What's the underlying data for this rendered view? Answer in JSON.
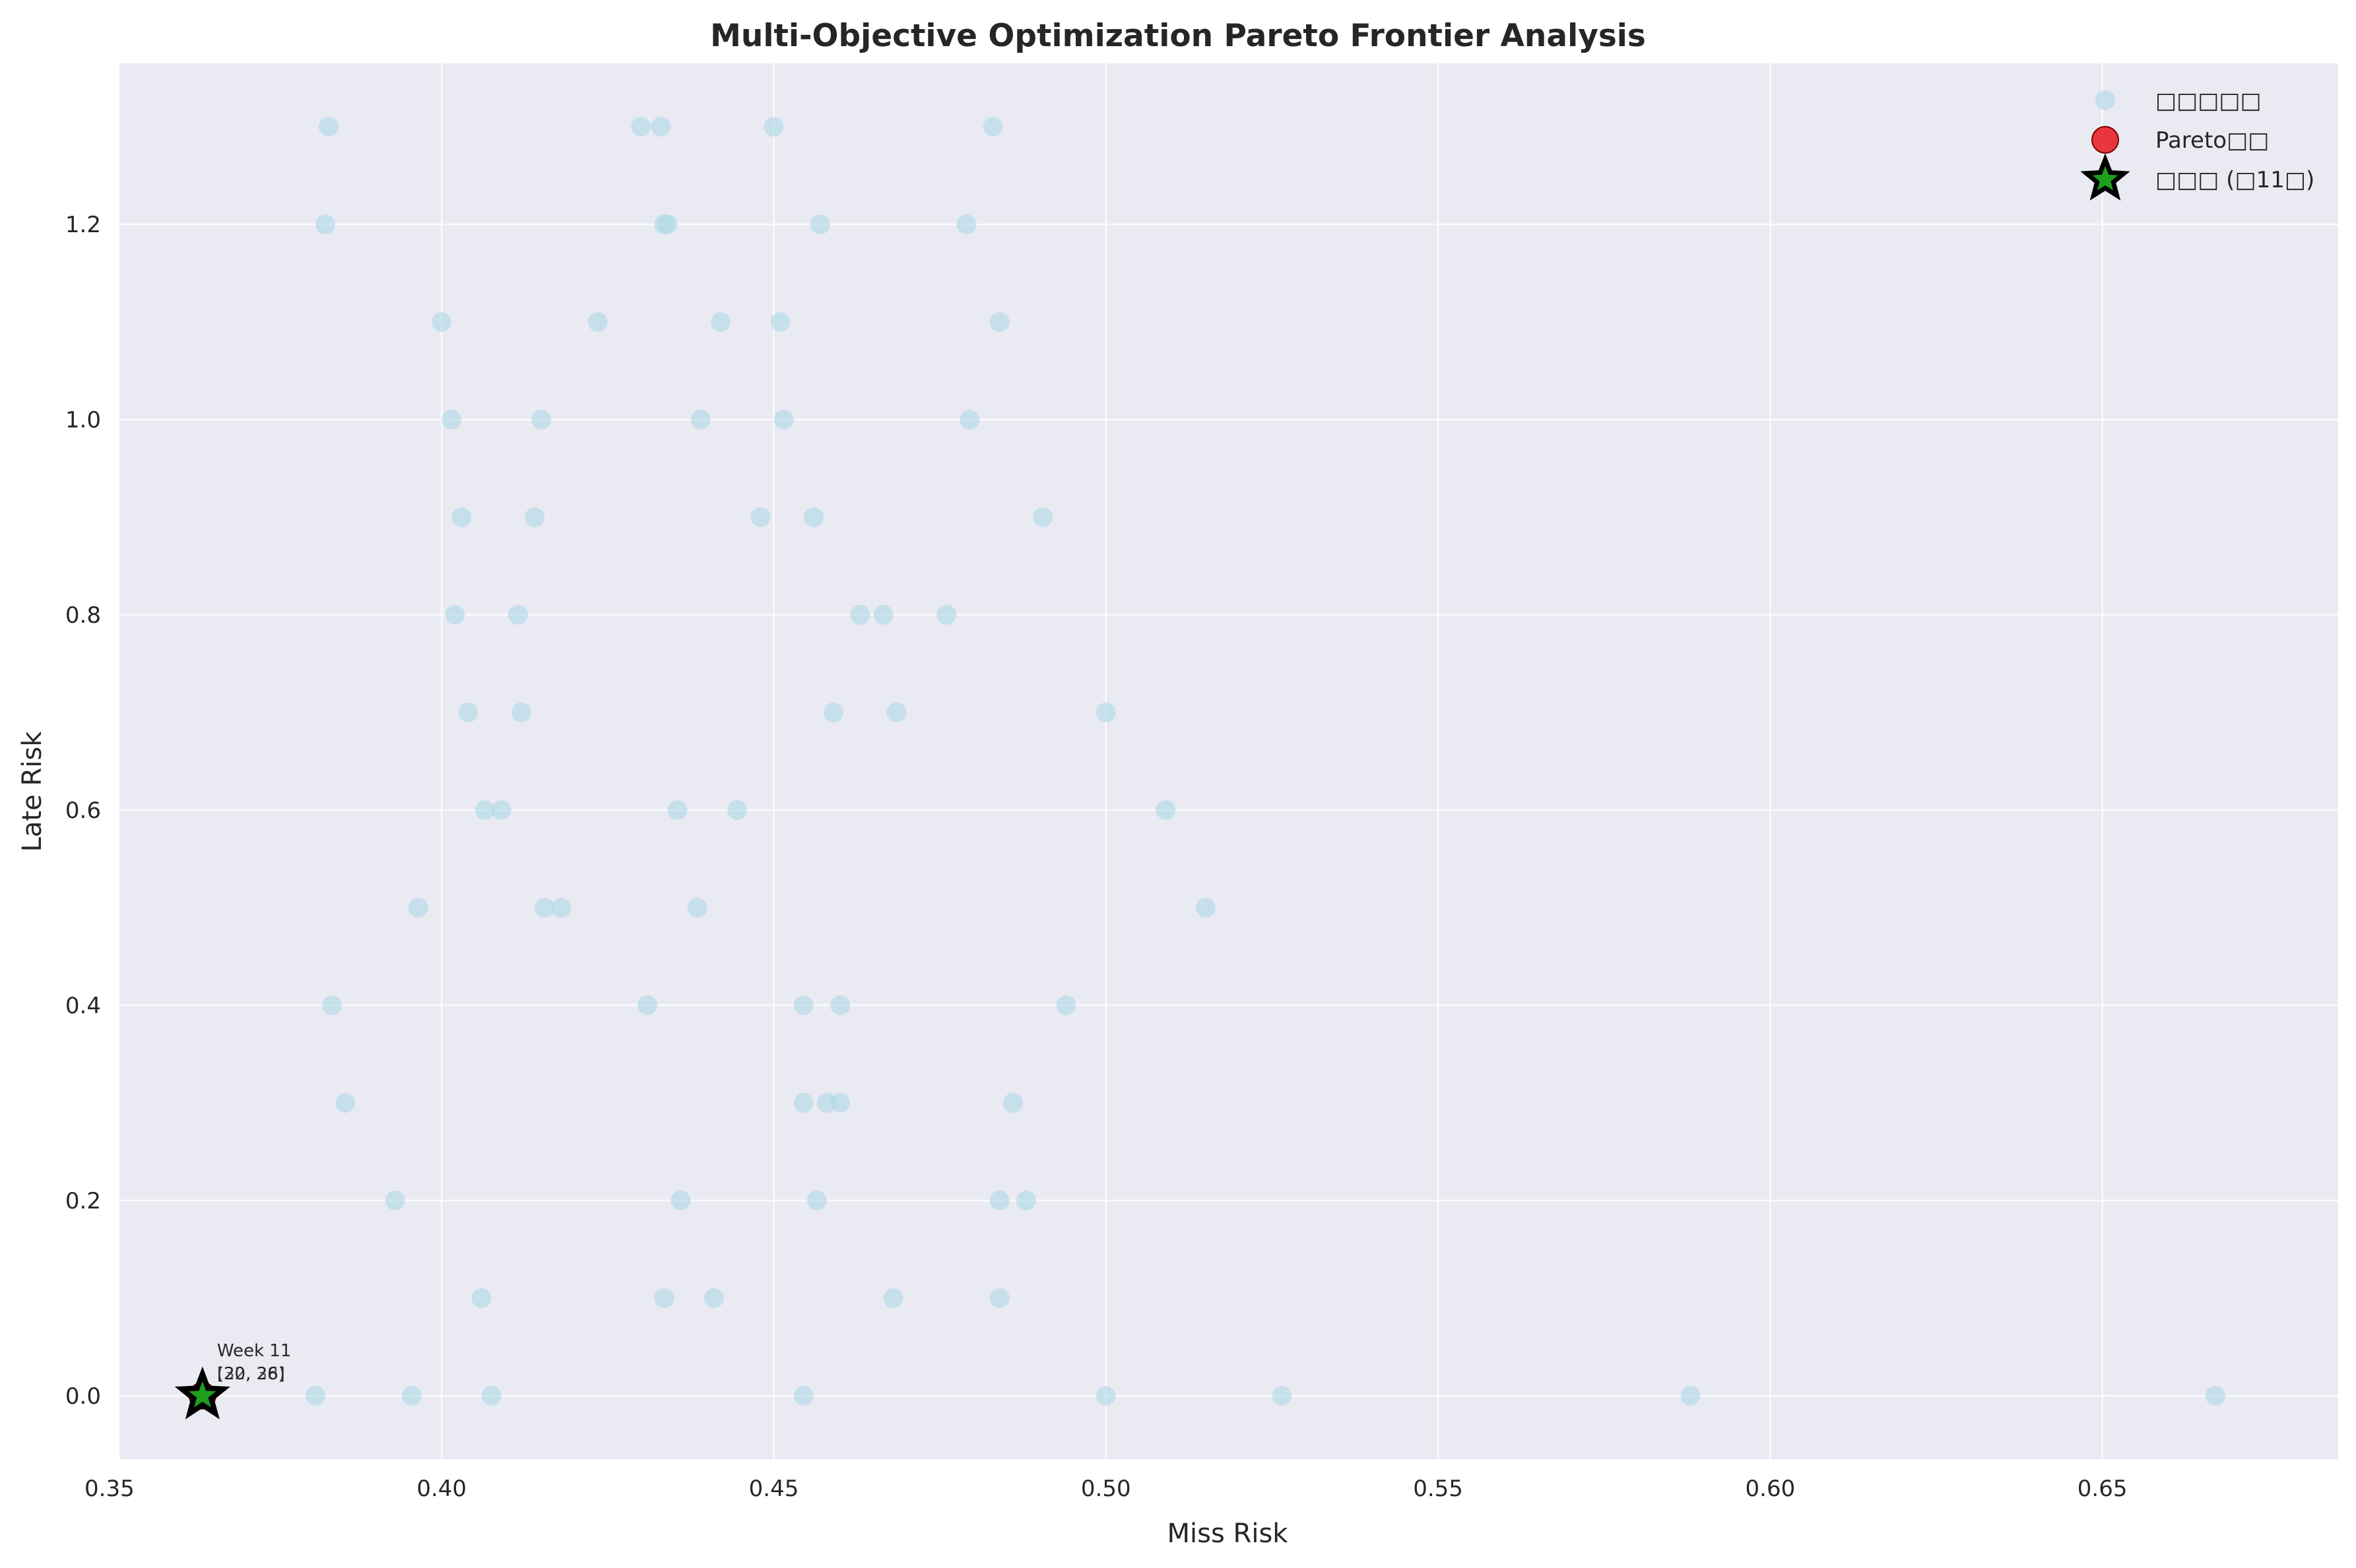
{
  "chart_data": {
    "type": "scatter",
    "title": "Multi-Objective Optimization Pareto Frontier Analysis",
    "xlabel": "Miss Risk",
    "ylabel": "Late Risk",
    "xlim": [
      0.3515,
      0.6855
    ],
    "ylim": [
      -0.065,
      1.365
    ],
    "xticks": [
      0.35,
      0.4,
      0.45,
      0.5,
      0.55,
      0.6,
      0.65
    ],
    "xtick_labels": [
      "0.35",
      "0.40",
      "0.45",
      "0.50",
      "0.55",
      "0.60",
      "0.65"
    ],
    "yticks": [
      0.0,
      0.2,
      0.4,
      0.6,
      0.8,
      1.0,
      1.2
    ],
    "ytick_labels": [
      "0.0",
      "0.2",
      "0.4",
      "0.6",
      "0.8",
      "1.0",
      "1.2"
    ],
    "grid": true,
    "legend_position": "top-right",
    "colors": {
      "plot_background": "#EAEAF2",
      "grid": "#FFFFFF",
      "all_solutions": "#ADD8E6",
      "pareto": "#E8181C",
      "optimal_fill": "#1E9E1E",
      "optimal_edge": "#000000"
    },
    "series": [
      {
        "name": "□□□□□",
        "marker": "circle",
        "points": [
          [
            0.383,
            1.3
          ],
          [
            0.43,
            1.3
          ],
          [
            0.433,
            1.3
          ],
          [
            0.45,
            1.3
          ],
          [
            0.483,
            1.3
          ],
          [
            0.3825,
            1.2
          ],
          [
            0.4335,
            1.2
          ],
          [
            0.434,
            1.2
          ],
          [
            0.457,
            1.2
          ],
          [
            0.479,
            1.2
          ],
          [
            0.4,
            1.1
          ],
          [
            0.4235,
            1.1
          ],
          [
            0.442,
            1.1
          ],
          [
            0.451,
            1.1
          ],
          [
            0.484,
            1.1
          ],
          [
            0.4015,
            1.0
          ],
          [
            0.415,
            1.0
          ],
          [
            0.439,
            1.0
          ],
          [
            0.4515,
            1.0
          ],
          [
            0.4795,
            1.0
          ],
          [
            0.403,
            0.9
          ],
          [
            0.414,
            0.9
          ],
          [
            0.448,
            0.9
          ],
          [
            0.456,
            0.9
          ],
          [
            0.4905,
            0.9
          ],
          [
            0.402,
            0.8
          ],
          [
            0.4115,
            0.8
          ],
          [
            0.463,
            0.8
          ],
          [
            0.4665,
            0.8
          ],
          [
            0.476,
            0.8
          ],
          [
            0.404,
            0.7
          ],
          [
            0.412,
            0.7
          ],
          [
            0.459,
            0.7
          ],
          [
            0.4685,
            0.7
          ],
          [
            0.5,
            0.7
          ],
          [
            0.4065,
            0.6
          ],
          [
            0.409,
            0.6
          ],
          [
            0.4355,
            0.6
          ],
          [
            0.4445,
            0.6
          ],
          [
            0.509,
            0.6
          ],
          [
            0.3965,
            0.5
          ],
          [
            0.4155,
            0.5
          ],
          [
            0.418,
            0.5
          ],
          [
            0.4385,
            0.5
          ],
          [
            0.515,
            0.5
          ],
          [
            0.3835,
            0.4
          ],
          [
            0.431,
            0.4
          ],
          [
            0.4545,
            0.4
          ],
          [
            0.46,
            0.4
          ],
          [
            0.494,
            0.4
          ],
          [
            0.3855,
            0.3
          ],
          [
            0.4545,
            0.3
          ],
          [
            0.458,
            0.3
          ],
          [
            0.46,
            0.3
          ],
          [
            0.486,
            0.3
          ],
          [
            0.393,
            0.2
          ],
          [
            0.436,
            0.2
          ],
          [
            0.4565,
            0.2
          ],
          [
            0.484,
            0.2
          ],
          [
            0.488,
            0.2
          ],
          [
            0.406,
            0.1
          ],
          [
            0.4335,
            0.1
          ],
          [
            0.441,
            0.1
          ],
          [
            0.468,
            0.1
          ],
          [
            0.484,
            0.1
          ],
          [
            0.381,
            0.0
          ],
          [
            0.3955,
            0.0
          ],
          [
            0.4075,
            0.0
          ],
          [
            0.4545,
            0.0
          ],
          [
            0.5,
            0.0
          ],
          [
            0.5265,
            0.0
          ],
          [
            0.588,
            0.0
          ],
          [
            0.667,
            0.0
          ],
          [
            0.364,
            0.0
          ]
        ]
      },
      {
        "name": "Pareto□□",
        "marker": "circle",
        "points": [
          [
            0.364,
            0.0
          ]
        ]
      },
      {
        "name": "□□□ (□11□)",
        "marker": "star",
        "points": [
          [
            0.364,
            0.0
          ]
        ]
      }
    ],
    "annotations": [
      {
        "text_lines": [
          "Week 11",
          "[20, 26]",
          "(32, 38)"
        ],
        "x": 0.364,
        "y": 0.0
      }
    ]
  }
}
